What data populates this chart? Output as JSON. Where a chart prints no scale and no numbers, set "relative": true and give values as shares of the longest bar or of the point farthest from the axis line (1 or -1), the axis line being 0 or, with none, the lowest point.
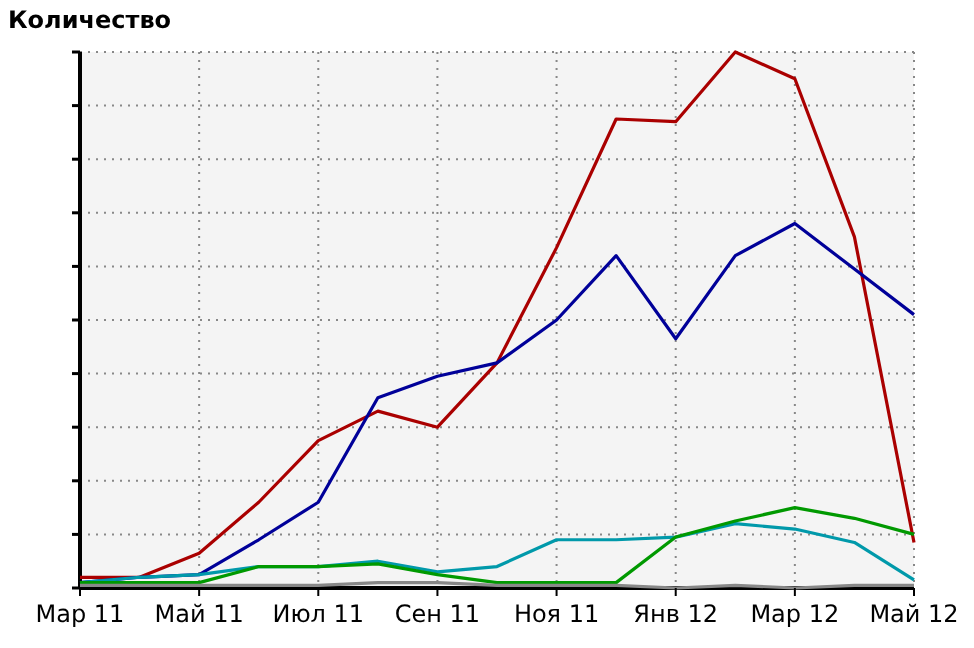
{
  "chart_data": {
    "type": "line",
    "title": "Количество",
    "relative": true,
    "grid": true,
    "categories": [
      "Мар 11",
      null,
      "Май 11",
      null,
      "Июл 11",
      null,
      "Сен 11",
      null,
      "Ноя 11",
      null,
      "Янв 12",
      null,
      "Мар 12",
      null,
      "Май 12"
    ],
    "series": [
      {
        "color": "#aa0000",
        "values": [
          0.02,
          0.02,
          0.065,
          0.16,
          0.275,
          0.33,
          0.3,
          0.42,
          0.635,
          0.875,
          0.87,
          1,
          0.95,
          0.655,
          0.085
        ]
      },
      {
        "color": "#000099",
        "values": [
          0.01,
          0.02,
          0.025,
          0.09,
          0.16,
          0.355,
          0.395,
          0.42,
          0.5,
          0.62,
          0.465,
          0.62,
          0.68,
          0.595,
          0.51
        ]
      },
      {
        "color": "#0099aa",
        "values": [
          0.01,
          0.02,
          0.025,
          0.04,
          0.04,
          0.05,
          0.03,
          0.04,
          0.09,
          0.09,
          0.095,
          0.12,
          0.11,
          0.085,
          0.015
        ]
      },
      {
        "color": "#009900",
        "values": [
          0.01,
          0.01,
          0.01,
          0.04,
          0.04,
          0.045,
          0.025,
          0.01,
          0.01,
          0.01,
          0.095,
          0.125,
          0.15,
          0.13,
          0.1
        ]
      },
      {
        "color": "#888888",
        "values": [
          0.005,
          0.005,
          0.005,
          0.005,
          0.005,
          0.01,
          0.01,
          0.005,
          0.005,
          0.005,
          0,
          0.005,
          0,
          0.005,
          0.005
        ]
      }
    ]
  }
}
